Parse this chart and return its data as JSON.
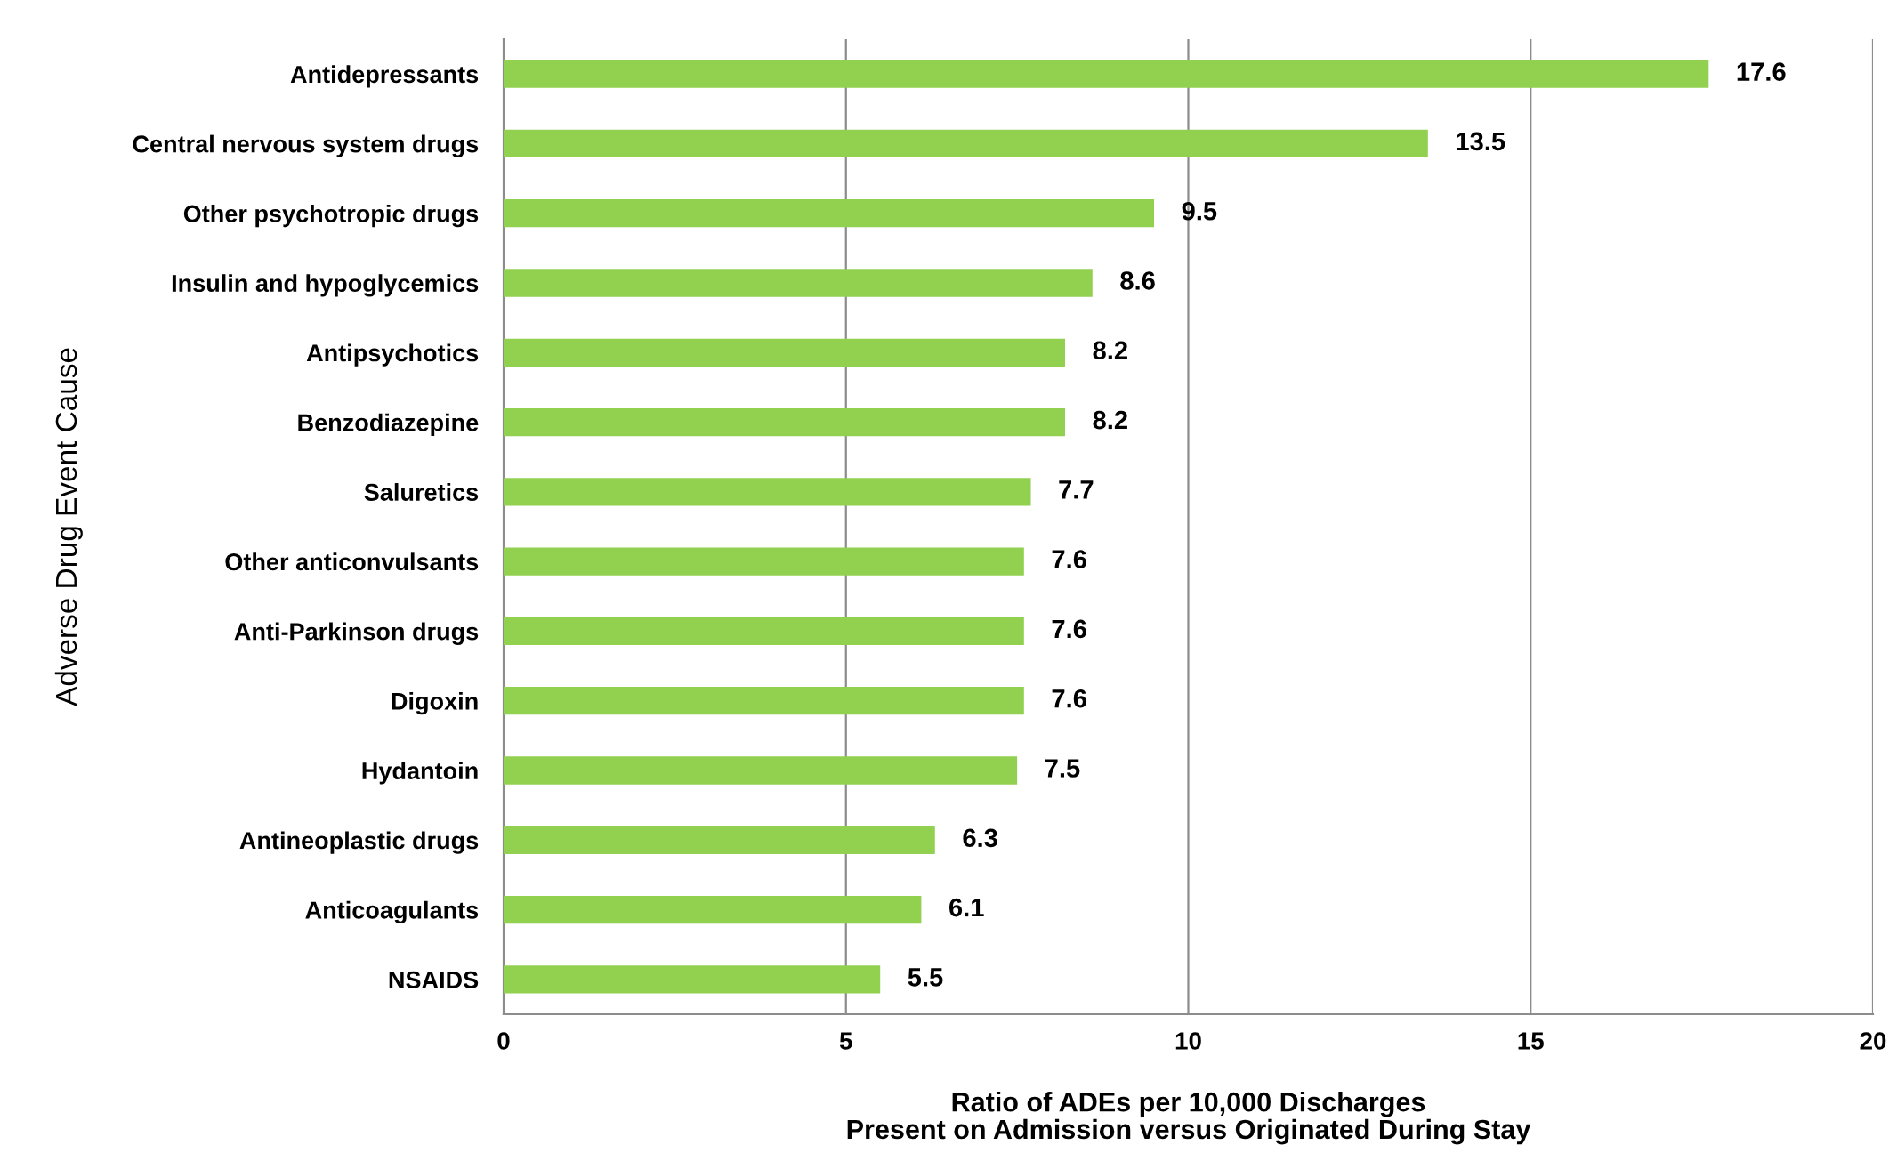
{
  "chart_data": {
    "type": "bar",
    "orientation": "horizontal",
    "categories": [
      "Antidepressants",
      "Central nervous system drugs",
      "Other psychotropic drugs",
      "Insulin and hypoglycemics",
      "Antipsychotics",
      "Benzodiazepine",
      "Saluretics",
      "Other anticonvulsants",
      "Anti-Parkinson drugs",
      "Digoxin",
      "Hydantoin",
      "Antineoplastic drugs",
      "Anticoagulants",
      "NSAIDS"
    ],
    "values": [
      17.6,
      13.5,
      9.5,
      8.6,
      8.2,
      8.2,
      7.7,
      7.6,
      7.6,
      7.6,
      7.5,
      6.3,
      6.1,
      5.5
    ],
    "color": "#92d050",
    "data_labels": true,
    "xlim": [
      0,
      20
    ],
    "xticks": [
      0,
      5,
      10,
      15,
      20
    ],
    "grid": "x",
    "xlabel": "Ratio of ADEs per 10,000 Discharges\nPresent on Admission versus Originated During Stay",
    "ylabel": "Adverse Drug Event Cause"
  }
}
